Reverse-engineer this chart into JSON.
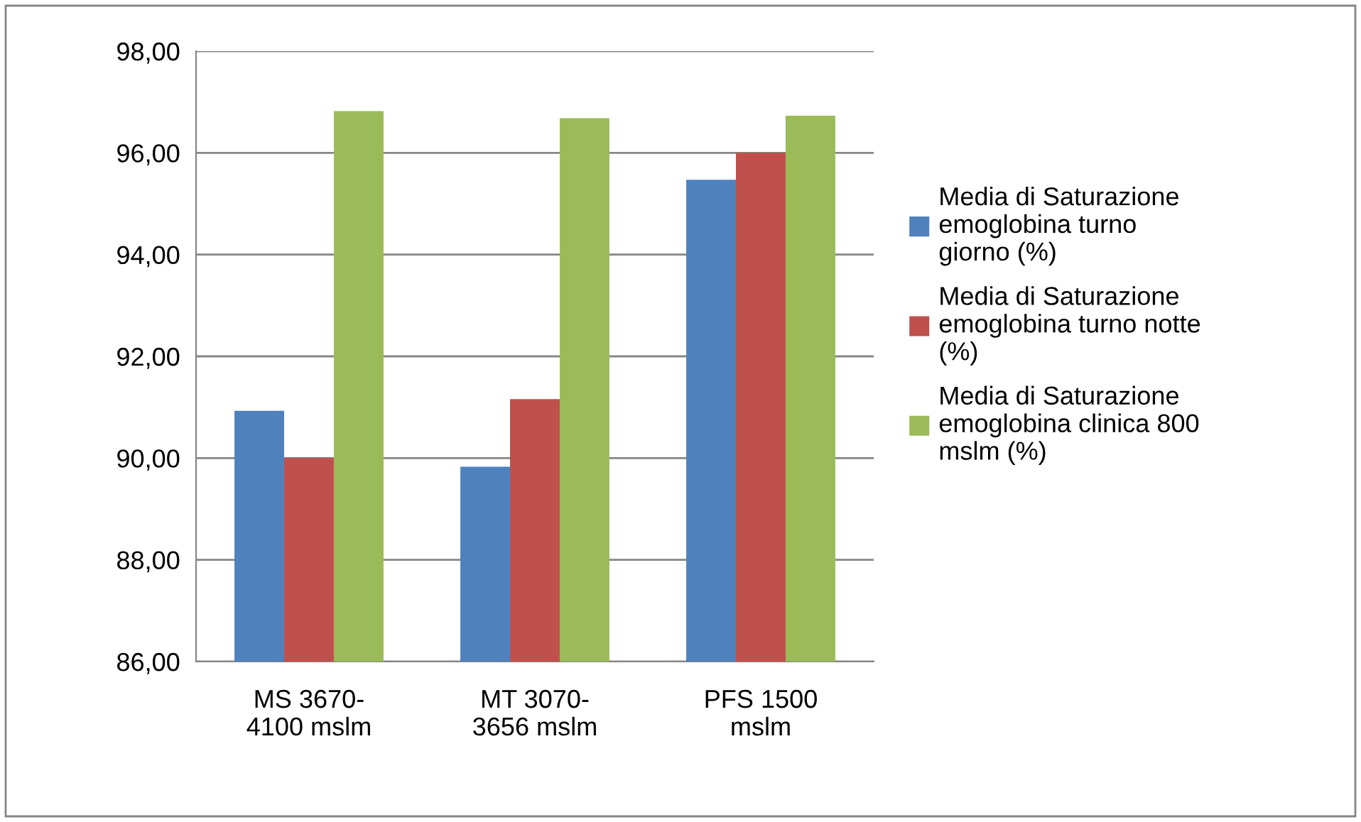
{
  "chart_data": {
    "type": "bar",
    "categories": [
      "MS 3670-\n4100 mslm",
      "MT 3070-\n3656 mslm",
      "PFS 1500\nmslm"
    ],
    "series": [
      {
        "name": "Media di Saturazione emoglobina turno giorno (%)",
        "color": "#4f81bd",
        "values": [
          90.93,
          89.83,
          95.47
        ]
      },
      {
        "name": "Media di Saturazione emoglobina turno notte (%)",
        "color": "#c0504d",
        "values": [
          90.0,
          91.16,
          96.0
        ]
      },
      {
        "name": "Media di Saturazione emoglobina clinica 800 mslm (%)",
        "color": "#9bbb59",
        "values": [
          96.82,
          96.68,
          96.73
        ]
      }
    ],
    "ylim": [
      86,
      98
    ],
    "yticks": [
      {
        "value": 86,
        "label": "86,00"
      },
      {
        "value": 88,
        "label": "88,00"
      },
      {
        "value": 90,
        "label": "90,00"
      },
      {
        "value": 92,
        "label": "92,00"
      },
      {
        "value": 94,
        "label": "94,00"
      },
      {
        "value": 96,
        "label": "96,00"
      },
      {
        "value": 98,
        "label": "98,00"
      }
    ],
    "grid": "y",
    "legend": "right"
  }
}
